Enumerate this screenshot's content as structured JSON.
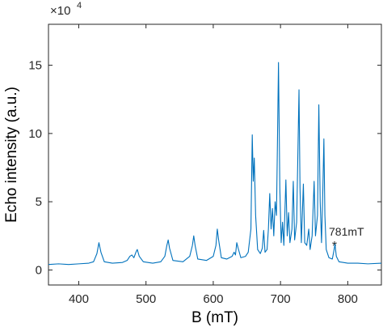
{
  "chart_data": {
    "type": "line",
    "xlabel": "B (mT)",
    "ylabel": "Echo intensity (a.u.)",
    "y_multiplier": {
      "base": "×10",
      "exponent": "4"
    },
    "annotation": {
      "text": "781mT",
      "marker": "*"
    },
    "xlim": [
      355,
      850
    ],
    "ylim": [
      -1.1,
      18
    ],
    "xticks": [
      400,
      500,
      600,
      700,
      800
    ],
    "yticks": [
      0,
      5,
      10,
      15
    ],
    "grid": false,
    "series": [
      {
        "color": "#0072bd",
        "x": [
          355,
          370,
          385,
          400,
          415,
          422,
          427,
          430,
          433,
          438,
          450,
          465,
          472,
          476,
          479,
          482,
          485,
          487,
          490,
          496,
          510,
          522,
          528,
          531,
          533,
          535,
          540,
          555,
          565,
          569,
          571,
          573,
          577,
          590,
          600,
          604,
          606,
          608,
          612,
          620,
          628,
          631,
          633,
          635,
          637,
          641,
          648,
          652,
          656,
          658,
          659.5,
          661,
          663,
          666,
          670,
          673,
          675,
          677,
          680,
          682,
          684,
          686,
          688,
          690,
          692,
          694,
          695.5,
          697,
          699,
          701,
          703,
          705,
          708,
          710,
          712,
          714,
          717,
          719,
          721,
          724,
          726,
          727.5,
          729,
          731,
          734,
          736,
          739,
          742,
          744,
          747,
          750,
          752,
          755,
          757,
          759,
          761,
          763,
          764.5,
          766,
          768,
          772,
          777,
          779,
          781,
          783,
          787,
          800,
          815,
          830,
          850
        ],
        "values": [
          0.4,
          0.45,
          0.4,
          0.45,
          0.5,
          0.6,
          1.2,
          2.0,
          1.3,
          0.6,
          0.5,
          0.55,
          0.7,
          1.0,
          1.1,
          0.9,
          1.3,
          1.5,
          1.0,
          0.6,
          0.5,
          0.6,
          1.0,
          1.8,
          2.2,
          1.6,
          0.7,
          0.6,
          1.0,
          1.8,
          2.5,
          1.8,
          0.8,
          0.7,
          1.0,
          1.8,
          3.0,
          2.2,
          0.9,
          0.8,
          1.0,
          1.3,
          1.1,
          2.0,
          1.6,
          0.9,
          1.0,
          1.3,
          3.0,
          9.9,
          6.5,
          8.2,
          4.0,
          1.5,
          1.2,
          1.6,
          2.9,
          1.3,
          1.5,
          3.0,
          5.6,
          3.0,
          4.5,
          2.5,
          5.0,
          4.0,
          9.5,
          15.2,
          6.0,
          2.0,
          3.5,
          1.8,
          6.6,
          2.5,
          4.2,
          2.0,
          3.0,
          6.5,
          2.2,
          3.5,
          9.0,
          13.2,
          6.0,
          2.0,
          6.3,
          2.0,
          1.8,
          3.0,
          1.5,
          2.5,
          6.5,
          2.5,
          4.0,
          12.1,
          5.0,
          2.0,
          6.0,
          9.6,
          4.0,
          1.5,
          0.9,
          0.8,
          1.3,
          1.9,
          1.0,
          0.6,
          0.5,
          0.5,
          0.45,
          0.5
        ]
      }
    ]
  }
}
